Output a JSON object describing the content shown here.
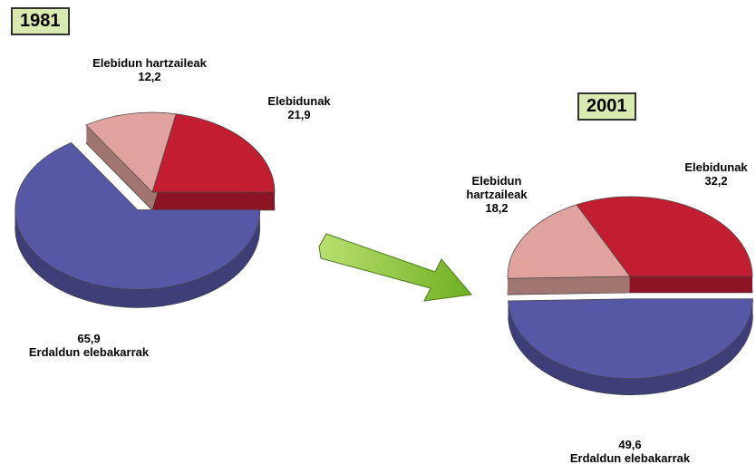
{
  "chart_data": [
    {
      "type": "pie",
      "title": "1981",
      "categories": [
        "Elebidunak",
        "Elebidun hartzaileak",
        "Erdaldun elebakarrak"
      ],
      "values": [
        21.9,
        12.2,
        65.9
      ],
      "value_labels": [
        "21,9",
        "12,2",
        "65,9"
      ],
      "colors": [
        "#c21d30",
        "#e0a29c",
        "#5658a6"
      ]
    },
    {
      "type": "pie",
      "title": "2001",
      "categories": [
        "Elebidunak",
        "Elebidun hartzaileak",
        "Erdaldun elebakarrak"
      ],
      "values": [
        32.2,
        18.2,
        49.6
      ],
      "value_labels": [
        "32,2",
        "18,2",
        "49,6"
      ],
      "colors": [
        "#c21d30",
        "#e0a29c",
        "#5658a6"
      ]
    }
  ]
}
